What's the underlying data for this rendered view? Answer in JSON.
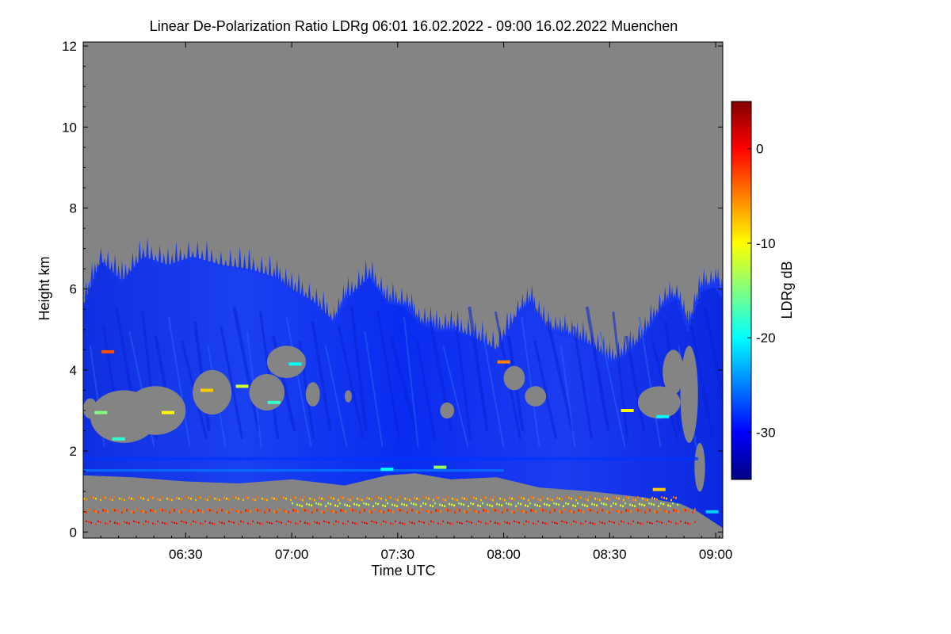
{
  "chart_data": {
    "type": "heatmap",
    "title": "Linear De-Polarization Ratio LDRg   06:01 16.02.2022 - 09:00 16.02.2022 Muenchen",
    "xlabel": "Time UTC",
    "ylabel": "Height km",
    "xlim_minutes": [
      361,
      542
    ],
    "ylim": [
      -0.15,
      12.1
    ],
    "x_ticks": [
      {
        "label": "06:30",
        "minute": 390
      },
      {
        "label": "07:00",
        "minute": 420
      },
      {
        "label": "07:30",
        "minute": 450
      },
      {
        "label": "08:00",
        "minute": 480
      },
      {
        "label": "08:30",
        "minute": 510
      },
      {
        "label": "09:00",
        "minute": 540
      }
    ],
    "y_ticks": [
      0,
      2,
      4,
      6,
      8,
      10,
      12
    ],
    "colorbar": {
      "label": "LDRg dB",
      "range": [
        -35,
        5
      ],
      "ticks": [
        0,
        -10,
        -20,
        -30
      ],
      "colors": [
        "#000080",
        "#0000ff",
        "#0080ff",
        "#00ffff",
        "#80ff80",
        "#ffff00",
        "#ff8000",
        "#ff0000",
        "#800000"
      ]
    },
    "background_color": "#848484",
    "cloud_top_km": [
      {
        "t": 361,
        "h": 5.6
      },
      {
        "t": 366,
        "h": 6.7
      },
      {
        "t": 372,
        "h": 6.2
      },
      {
        "t": 378,
        "h": 6.8
      },
      {
        "t": 385,
        "h": 6.6
      },
      {
        "t": 392,
        "h": 6.8
      },
      {
        "t": 400,
        "h": 6.6
      },
      {
        "t": 408,
        "h": 6.5
      },
      {
        "t": 415,
        "h": 6.3
      },
      {
        "t": 420,
        "h": 6.0
      },
      {
        "t": 426,
        "h": 5.7
      },
      {
        "t": 432,
        "h": 5.2
      },
      {
        "t": 436,
        "h": 5.8
      },
      {
        "t": 442,
        "h": 6.3
      },
      {
        "t": 447,
        "h": 5.7
      },
      {
        "t": 452,
        "h": 5.6
      },
      {
        "t": 456,
        "h": 5.2
      },
      {
        "t": 461,
        "h": 5.0
      },
      {
        "t": 466,
        "h": 5.0
      },
      {
        "t": 472,
        "h": 4.8
      },
      {
        "t": 478,
        "h": 4.5
      },
      {
        "t": 484,
        "h": 5.4
      },
      {
        "t": 488,
        "h": 5.6
      },
      {
        "t": 492,
        "h": 5.0
      },
      {
        "t": 496,
        "h": 4.9
      },
      {
        "t": 500,
        "h": 4.8
      },
      {
        "t": 505,
        "h": 4.6
      },
      {
        "t": 510,
        "h": 4.2
      },
      {
        "t": 515,
        "h": 4.4
      },
      {
        "t": 520,
        "h": 4.9
      },
      {
        "t": 525,
        "h": 5.6
      },
      {
        "t": 529,
        "h": 5.8
      },
      {
        "t": 532,
        "h": 5.0
      },
      {
        "t": 536,
        "h": 6.0
      },
      {
        "t": 540,
        "h": 6.1
      },
      {
        "t": 542,
        "h": 5.8
      }
    ],
    "cloud_base_km": [
      {
        "t": 361,
        "h": 1.4
      },
      {
        "t": 375,
        "h": 1.35
      },
      {
        "t": 390,
        "h": 1.25
      },
      {
        "t": 405,
        "h": 1.2
      },
      {
        "t": 420,
        "h": 1.3
      },
      {
        "t": 435,
        "h": 1.15
      },
      {
        "t": 447,
        "h": 1.4
      },
      {
        "t": 455,
        "h": 1.45
      },
      {
        "t": 465,
        "h": 1.3
      },
      {
        "t": 478,
        "h": 1.35
      },
      {
        "t": 490,
        "h": 1.1
      },
      {
        "t": 505,
        "h": 1.0
      },
      {
        "t": 520,
        "h": 0.85
      },
      {
        "t": 530,
        "h": 0.7
      },
      {
        "t": 535,
        "h": 0.5
      },
      {
        "t": 542,
        "h": 0.1
      }
    ],
    "gaps": [
      {
        "t0": 361,
        "t1": 365,
        "h0": 2.8,
        "h1": 3.3
      },
      {
        "t0": 363,
        "t1": 382,
        "h0": 2.2,
        "h1": 3.5
      },
      {
        "t0": 373,
        "t1": 390,
        "h0": 2.4,
        "h1": 3.6
      },
      {
        "t0": 392,
        "t1": 403,
        "h0": 2.9,
        "h1": 4.0
      },
      {
        "t0": 408,
        "t1": 418,
        "h0": 3.0,
        "h1": 3.9
      },
      {
        "t0": 413,
        "t1": 424,
        "h0": 3.8,
        "h1": 4.6
      },
      {
        "t0": 424,
        "t1": 428,
        "h0": 3.1,
        "h1": 3.7
      },
      {
        "t0": 435,
        "t1": 437,
        "h0": 3.2,
        "h1": 3.5
      },
      {
        "t0": 462,
        "t1": 466,
        "h0": 2.8,
        "h1": 3.2
      },
      {
        "t0": 480,
        "t1": 486,
        "h0": 3.5,
        "h1": 4.1
      },
      {
        "t0": 486,
        "t1": 492,
        "h0": 3.1,
        "h1": 3.6
      },
      {
        "t0": 518,
        "t1": 530,
        "h0": 2.8,
        "h1": 3.6
      },
      {
        "t0": 525,
        "t1": 531,
        "h0": 3.4,
        "h1": 4.5
      },
      {
        "t0": 530,
        "t1": 535,
        "h0": 2.2,
        "h1": 4.6
      },
      {
        "t0": 534,
        "t1": 537,
        "h0": 1.0,
        "h1": 2.2
      }
    ],
    "bands": [
      {
        "h": 1.85,
        "thickness": 0.08,
        "value": -28,
        "t0": 361,
        "t1": 535
      },
      {
        "h": 1.55,
        "thickness": 0.06,
        "value": -25,
        "t0": 361,
        "t1": 480
      },
      {
        "h": 0.85,
        "thickness": 0.05,
        "value": -6,
        "t0": 361,
        "t1": 530
      },
      {
        "h": 0.55,
        "thickness": 0.06,
        "value": -3,
        "t0": 361,
        "t1": 535
      },
      {
        "h": 0.25,
        "thickness": 0.04,
        "value": 0,
        "t0": 361,
        "t1": 535
      },
      {
        "h": 0.7,
        "thickness": 0.05,
        "value": -12,
        "t0": 420,
        "t1": 530
      }
    ],
    "patches": [
      {
        "t": 368,
        "h": 4.45,
        "value": -3
      },
      {
        "t": 366,
        "h": 2.95,
        "value": -15
      },
      {
        "t": 385,
        "h": 2.95,
        "value": -10
      },
      {
        "t": 371,
        "h": 2.3,
        "value": -18
      },
      {
        "t": 396,
        "h": 3.5,
        "value": -8
      },
      {
        "t": 406,
        "h": 3.6,
        "value": -12
      },
      {
        "t": 415,
        "h": 3.2,
        "value": -18
      },
      {
        "t": 421,
        "h": 4.15,
        "value": -20
      },
      {
        "t": 447,
        "h": 1.55,
        "value": -20
      },
      {
        "t": 462,
        "h": 1.6,
        "value": -14
      },
      {
        "t": 515,
        "h": 3.0,
        "value": -10
      },
      {
        "t": 525,
        "h": 2.85,
        "value": -20
      },
      {
        "t": 524,
        "h": 1.05,
        "value": -8
      },
      {
        "t": 539,
        "h": 0.5,
        "value": -22
      },
      {
        "t": 480,
        "h": 4.2,
        "value": -5
      }
    ]
  }
}
